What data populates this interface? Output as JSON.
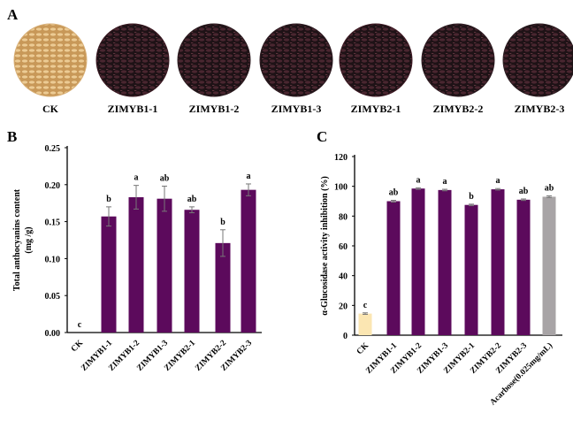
{
  "panel_a": {
    "label": "A",
    "samples": [
      {
        "name": "CK",
        "color": "#d8b078"
      },
      {
        "name": "ZIMYB1-1",
        "color": "#3a1a22"
      },
      {
        "name": "ZIMYB1-2",
        "color": "#2a1a1e"
      },
      {
        "name": "ZIMYB1-3",
        "color": "#2c1a20"
      },
      {
        "name": "ZIMYB2-1",
        "color": "#3e1a24"
      },
      {
        "name": "ZIMYB2-2",
        "color": "#2e1c22"
      },
      {
        "name": "ZIMYB2-3",
        "color": "#2a1c20"
      }
    ]
  },
  "chart_data": [
    {
      "panel": "B",
      "type": "bar",
      "title": "",
      "xlabel": "",
      "ylabel": "Total anthocyanins content",
      "ylabel2": "(mg /g)",
      "ylim": [
        0,
        0.25
      ],
      "yticks": [
        "0.00",
        "0.05",
        "0.10",
        "0.15",
        "0.20",
        "0.25"
      ],
      "categories": [
        "CK",
        "ZIMYB1-1",
        "ZIMYB1-2",
        "ZIMYB1-3",
        "ZIMYB2-1",
        "ZIMYB2-2",
        "ZIMYB2-3"
      ],
      "values": [
        0,
        0.157,
        0.183,
        0.181,
        0.166,
        0.121,
        0.193
      ],
      "errors": [
        0,
        0.013,
        0.016,
        0.017,
        0.004,
        0.018,
        0.008
      ],
      "letters": [
        "c",
        "b",
        "a",
        "ab",
        "ab",
        "b",
        "a"
      ],
      "colors": [
        "#5c0a5c",
        "#5c0a5c",
        "#5c0a5c",
        "#5c0a5c",
        "#5c0a5c",
        "#5c0a5c",
        "#5c0a5c"
      ]
    },
    {
      "panel": "C",
      "type": "bar",
      "title": "",
      "xlabel": "",
      "ylabel": "α-Glucosidase activity inhibition  (%)",
      "ylim": [
        0,
        120
      ],
      "yticks": [
        "0",
        "20",
        "40",
        "60",
        "80",
        "100",
        "120"
      ],
      "categories": [
        "CK",
        "ZIMYB1-1",
        "ZIMYB1-2",
        "ZIMYB1-3",
        "ZIMYB2-1",
        "ZIMYB2-2",
        "ZIMYB2-3",
        "Acarbose(0.025mg/mL)"
      ],
      "values": [
        14.5,
        90,
        98.5,
        97.5,
        87.5,
        98,
        91,
        93
      ],
      "errors": [
        0.5,
        0.6,
        0.5,
        0.5,
        0.5,
        0.5,
        0.5,
        0.6
      ],
      "letters": [
        "c",
        "ab",
        "a",
        "a",
        "b",
        "a",
        "ab",
        "ab"
      ],
      "colors": [
        "#fbe6b2",
        "#5c0a5c",
        "#5c0a5c",
        "#5c0a5c",
        "#5c0a5c",
        "#5c0a5c",
        "#5c0a5c",
        "#a8a4a6"
      ]
    }
  ]
}
